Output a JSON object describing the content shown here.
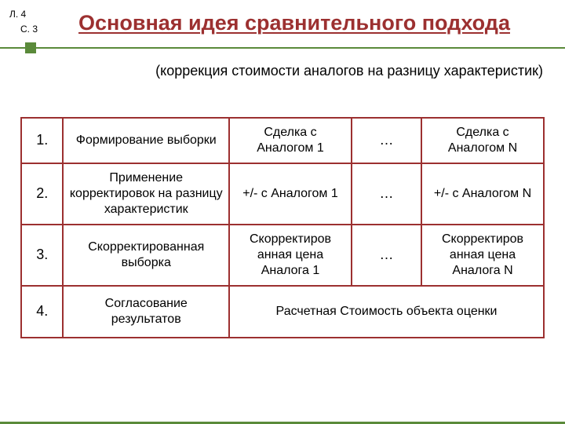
{
  "colors": {
    "accent_red": "#9c3030",
    "accent_green": "#5a8a3a",
    "text": "#000000",
    "background": "#ffffff"
  },
  "typography": {
    "title_fontsize": 27,
    "subtitle_fontsize": 18,
    "table_fontsize": 16,
    "indicator_fontsize": 12,
    "font_family": "Arial"
  },
  "page_indicator": {
    "line1": "Л. 4",
    "line2": "С. 3"
  },
  "title": "Основная идея сравнительного подхода",
  "subtitle": "(коррекция стоимости аналогов на разницу характеристик)",
  "table": {
    "border_color": "#9c3030",
    "border_width": 2.5,
    "rows": [
      {
        "num": "1.",
        "desc": "Формирование выборки",
        "col1": "Сделка с Аналогом 1",
        "dots": "…",
        "colN": "Сделка с Аналогом N"
      },
      {
        "num": "2.",
        "desc": "Применение корректировок на разницу характеристик",
        "col1": "+/- с Аналогом 1",
        "dots": "…",
        "colN": "+/- с Аналогом N"
      },
      {
        "num": "3.",
        "desc": "Скорректированная выборка",
        "col1": "Скорректиров\nанная цена Аналога 1",
        "dots": "…",
        "colN": "Скорректиров\nанная цена Аналога N"
      },
      {
        "num": "4.",
        "desc": "Согласование результатов",
        "final": "Расчетная Стоимость объекта оценки"
      }
    ]
  }
}
